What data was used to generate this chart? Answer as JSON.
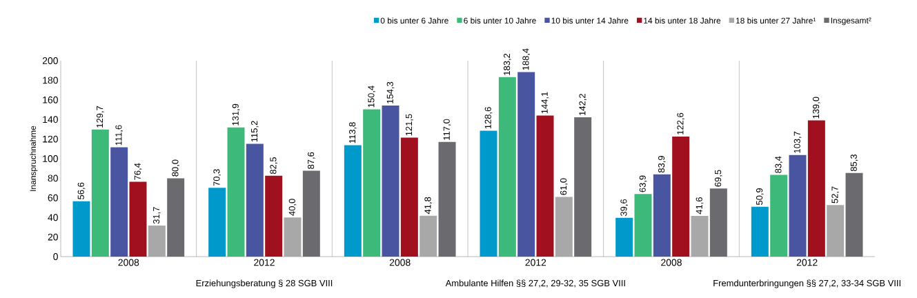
{
  "chart_data": {
    "type": "bar",
    "ylabel": "Inanspruchnahme",
    "categories": [
      "2008",
      "2012",
      "2008",
      "2012",
      "2008",
      "2012"
    ],
    "series": [
      {
        "name": "0 bis unter 6 Jahre",
        "color": "#0099cc",
        "values": [
          56.6,
          70.3,
          113.8,
          128.6,
          39.6,
          50.9
        ],
        "value_labels": [
          "56,6",
          "70,3",
          "113,8",
          "128,6",
          "39,6",
          "50,9"
        ]
      },
      {
        "name": "6 bis unter 10 Jahre",
        "color": "#3dba7a",
        "values": [
          129.7,
          131.9,
          150.4,
          183.2,
          63.9,
          83.4
        ],
        "value_labels": [
          "129,7",
          "131,9",
          "150,4",
          "183,2",
          "63,9",
          "83,4"
        ]
      },
      {
        "name": "10 bis unter 14 Jahre",
        "color": "#4a55a2",
        "values": [
          111.6,
          115.2,
          154.3,
          188.4,
          83.9,
          103.7
        ],
        "value_labels": [
          "111,6",
          "115,2",
          "154,3",
          "188,4",
          "83,9",
          "103,7"
        ]
      },
      {
        "name": "14 bis unter 18 Jahre",
        "color": "#a0101e",
        "values": [
          76.4,
          82.5,
          121.5,
          144.1,
          122.6,
          139.0
        ],
        "value_labels": [
          "76,4",
          "82,5",
          "121,5",
          "144,1",
          "122,6",
          "139,0"
        ]
      },
      {
        "name": "18 bis unter 27 Jahre¹",
        "color": "#a8a8a8",
        "values": [
          31.7,
          40.0,
          41.8,
          61.0,
          41.6,
          52.7
        ],
        "value_labels": [
          "31,7",
          "40,0",
          "41,8",
          "61,0",
          "41,6",
          "52,7"
        ]
      },
      {
        "name": "Insgesamt²",
        "color": "#6b6b6f",
        "values": [
          80.0,
          87.6,
          117.0,
          142.2,
          69.5,
          85.3
        ],
        "value_labels": [
          "80,0",
          "87,6",
          "117,0",
          "142,2",
          "69,5",
          "85,3"
        ]
      }
    ],
    "annotations": [
      "Erziehungsberatung § 28 SGB VIII",
      "Ambulante Hilfen §§ 27,2, 29-32, 35 SGB VIII",
      "Fremdunterbringungen §§ 27,2, 33-34 SGB VIII"
    ],
    "ylim": [
      0,
      200
    ],
    "yticks": [
      0,
      20,
      40,
      60,
      80,
      100,
      120,
      140,
      160,
      180,
      200
    ],
    "grid": "x",
    "legend": "top right"
  }
}
